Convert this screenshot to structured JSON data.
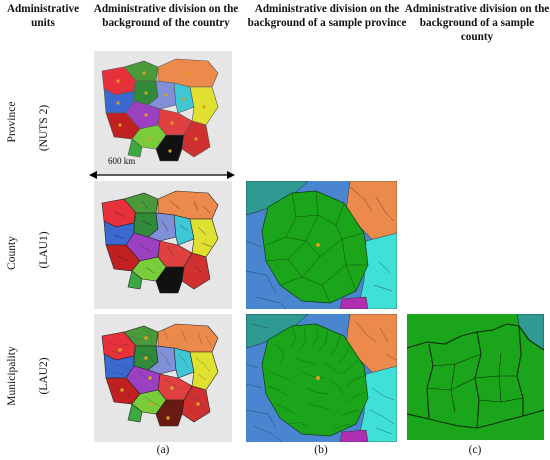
{
  "headers": {
    "units": "Administrative units",
    "country": "Administrative division on the background of the country",
    "province": "Administrative division on the background of a sample province",
    "county": "Administrative division on the background of a sample county"
  },
  "rows": [
    {
      "name": "Province",
      "code": "(NUTS 2)"
    },
    {
      "name": "County",
      "code": "(LAU1)"
    },
    {
      "name": "Municipality",
      "code": "(LAU2)"
    }
  ],
  "scale_label": "600 km",
  "captions": [
    "(a)",
    "(b)",
    "(c)"
  ],
  "colors": {
    "panel_bg": "#e6e6e6",
    "green_region": "#1aa51a",
    "blue_region": "#4a86d0",
    "orange_region": "#ec8a4c",
    "cyan_region": "#3fe0d6",
    "teal_region": "#2f9a92",
    "magenta_region": "#b02fb0"
  }
}
